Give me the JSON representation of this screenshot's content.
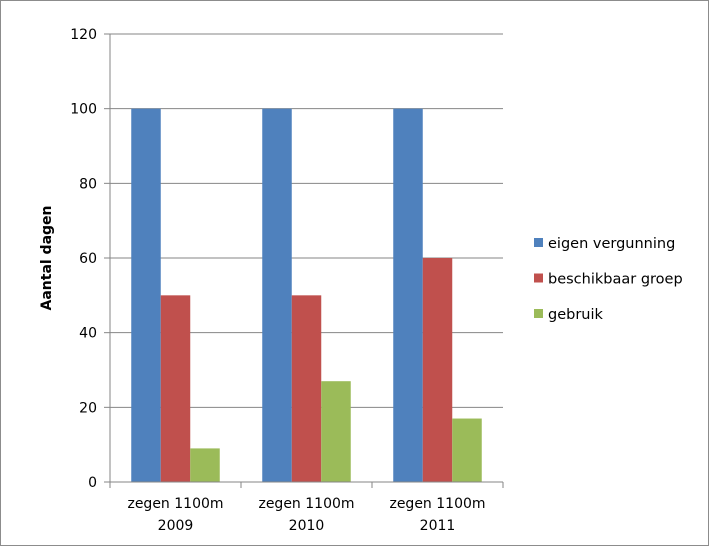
{
  "chart_data": {
    "type": "bar",
    "categories": [
      [
        "zegen 1100m",
        "2009"
      ],
      [
        "zegen 1100m",
        "2010"
      ],
      [
        "zegen 1100m",
        "2011"
      ]
    ],
    "series": [
      {
        "name": "eigen vergunning",
        "color": "#4f81bd",
        "values": [
          100,
          100,
          100
        ]
      },
      {
        "name": "beschikbaar groep",
        "color": "#c0504d",
        "values": [
          50,
          50,
          60
        ]
      },
      {
        "name": "gebruik",
        "color": "#9bbb59",
        "values": [
          9,
          27,
          17
        ]
      }
    ],
    "ylabel": "Aantal dagen",
    "xlabel": "",
    "ylim": [
      0,
      120
    ],
    "yticks": [
      0,
      20,
      40,
      60,
      80,
      100,
      120
    ],
    "grid": true,
    "legend_position": "right"
  }
}
